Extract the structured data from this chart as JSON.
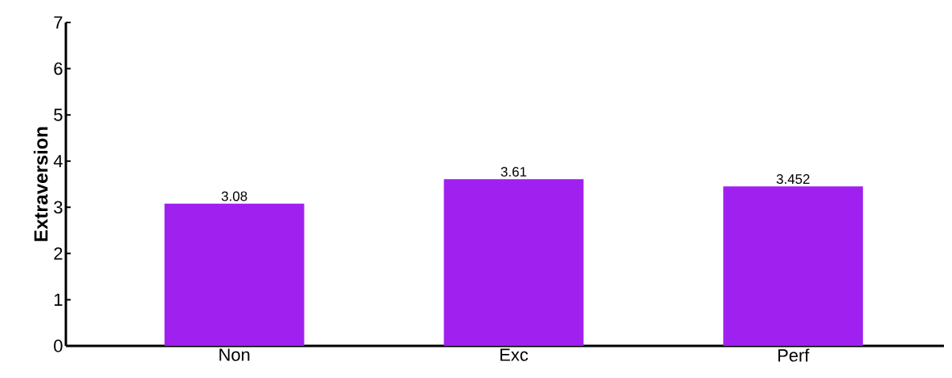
{
  "chart_data": {
    "type": "bar",
    "ylabel": "Extraversion",
    "categories": [
      "Non",
      "Exc",
      "Perf"
    ],
    "values": [
      3.08,
      3.61,
      3.452
    ],
    "color": "#a020f0",
    "data_labels": true,
    "ylim": [
      0,
      7
    ],
    "yticks": [
      0,
      1,
      2,
      3,
      4,
      5,
      6,
      7
    ],
    "grid": false
  }
}
